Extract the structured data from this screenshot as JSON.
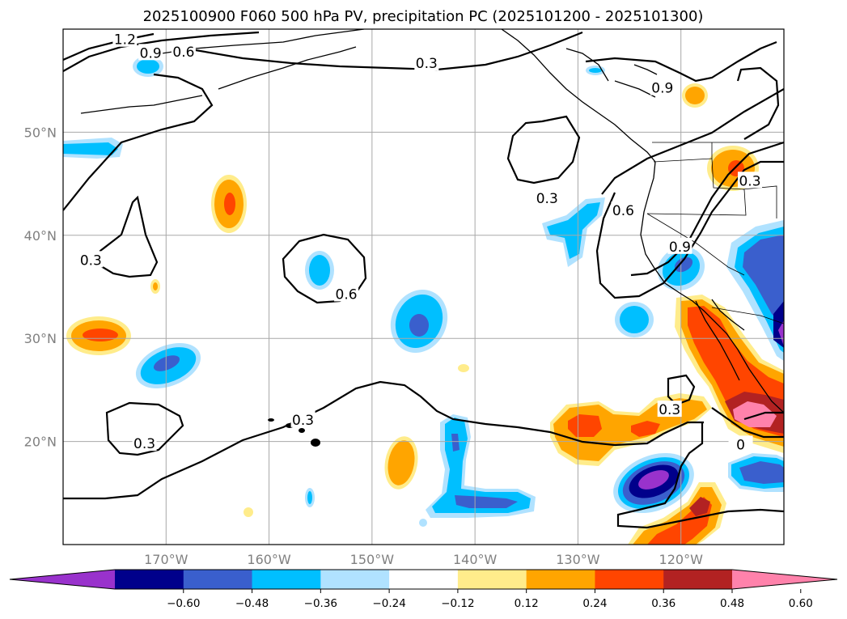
{
  "title": "2025100900 F060 500 hPa PV, precipitation PC (2025101200 - 2025101300)",
  "map": {
    "lon_range": [
      -180,
      -110
    ],
    "lat_range": [
      10,
      60
    ],
    "lon_ticks": [
      {
        "lon": -170,
        "label": "170°W"
      },
      {
        "lon": -160,
        "label": "160°W"
      },
      {
        "lon": -150,
        "label": "150°W"
      },
      {
        "lon": -140,
        "label": "140°W"
      },
      {
        "lon": -130,
        "label": "130°W"
      },
      {
        "lon": -120,
        "label": "120°W"
      }
    ],
    "lat_ticks": [
      {
        "lat": 20,
        "label": "20°N"
      },
      {
        "lat": 30,
        "label": "30°N"
      },
      {
        "lat": 40,
        "label": "40°N"
      },
      {
        "lat": 50,
        "label": "50°N"
      }
    ],
    "grid": true
  },
  "colorbar": {
    "levels": [
      "−0.60",
      "−0.48",
      "−0.36",
      "−0.24",
      "−0.12",
      "0.12",
      "0.24",
      "0.36",
      "0.48",
      "0.60"
    ],
    "colors": [
      "#9932cc",
      "#00008b",
      "#3a5fcd",
      "#00bfff",
      "#b0e2ff",
      "#ffffff",
      "#ffec8b",
      "#ffa500",
      "#ff4500",
      "#b22222",
      "#ff82ab"
    ],
    "extend": "both"
  },
  "contour_labels": [
    {
      "text": "1.2",
      "lon": -174,
      "lat": 59
    },
    {
      "text": "0.9",
      "lon": -171.5,
      "lat": 57.7
    },
    {
      "text": "0.6",
      "lon": -168.3,
      "lat": 57.8
    },
    {
      "text": "0.3",
      "lon": -144.7,
      "lat": 56.7
    },
    {
      "text": "0.9",
      "lon": -121.8,
      "lat": 54.3
    },
    {
      "text": "0.3",
      "lon": -133,
      "lat": 43.6
    },
    {
      "text": "0.6",
      "lon": -125.6,
      "lat": 42.4
    },
    {
      "text": "0.9",
      "lon": -120.1,
      "lat": 38.9
    },
    {
      "text": "0.3",
      "lon": -113.3,
      "lat": 45.3
    },
    {
      "text": "0.3",
      "lon": -177.3,
      "lat": 37.6
    },
    {
      "text": "0.6",
      "lon": -152.5,
      "lat": 34.3
    },
    {
      "text": "0.3",
      "lon": -156.7,
      "lat": 22.1
    },
    {
      "text": "0.3",
      "lon": -172.1,
      "lat": 19.8
    },
    {
      "text": "0.3",
      "lon": -121.1,
      "lat": 23.1
    },
    {
      "text": "0",
      "lon": -114.2,
      "lat": 19.7
    }
  ]
}
